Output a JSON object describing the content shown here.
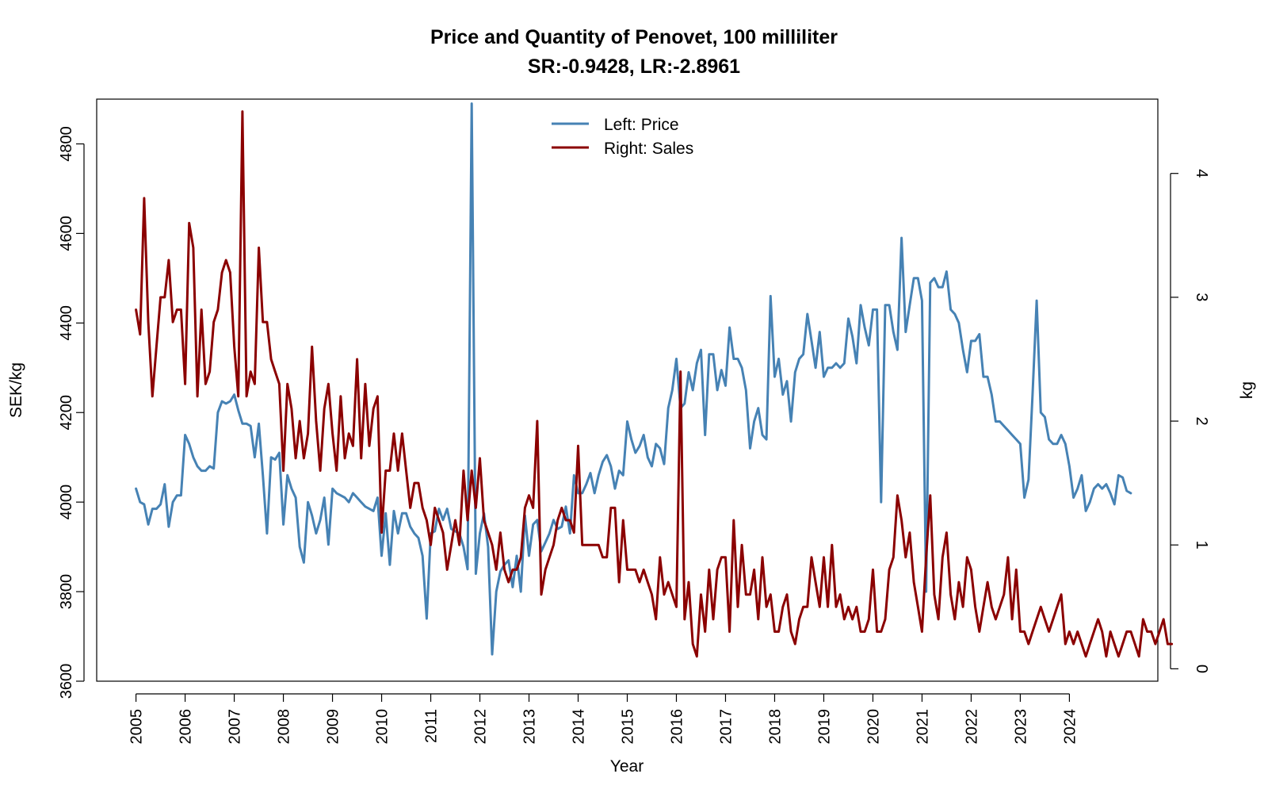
{
  "chart_data": {
    "type": "line",
    "title": "Price and Quantity of Penovet, 100 milliliter",
    "subtitle": "SR:-0.9428, LR:-2.8961",
    "xlabel": "Year",
    "ylabel_left": "SEK/kg",
    "ylabel_right": "kg",
    "x_ticks": [
      "2005",
      "2006",
      "2007",
      "2008",
      "2009",
      "2010",
      "2011",
      "2012",
      "2013",
      "2014",
      "2015",
      "2016",
      "2017",
      "2018",
      "2019",
      "2020",
      "2021",
      "2022",
      "2023",
      "2024"
    ],
    "y_left_ticks": [
      3600,
      3800,
      4000,
      4200,
      4400,
      4600,
      4800
    ],
    "y_right_ticks": [
      0,
      1,
      2,
      3,
      4
    ],
    "ylim_left": [
      3600,
      4900
    ],
    "ylim_right": [
      -0.1,
      4.6
    ],
    "xlim": [
      2004.2,
      2025.8
    ],
    "grid": false,
    "legend_position": "top-center",
    "legend": [
      {
        "label": "Left: Price",
        "color": "#4682B4"
      },
      {
        "label": "Right: Sales",
        "color": "#8B0000"
      }
    ],
    "series": [
      {
        "name": "Left: Price",
        "axis": "left",
        "color": "#4682B4",
        "x_start": 2005.0,
        "x_step": 0.0833333,
        "values": [
          4030,
          4000,
          3995,
          3950,
          3985,
          3985,
          3995,
          4040,
          3945,
          4000,
          4015,
          4015,
          4150,
          4130,
          4100,
          4080,
          4070,
          4070,
          4080,
          4075,
          4200,
          4225,
          4220,
          4225,
          4240,
          4205,
          4175,
          4175,
          4170,
          4100,
          4175,
          4060,
          3930,
          4100,
          4095,
          4110,
          3950,
          4060,
          4030,
          4010,
          3900,
          3865,
          4000,
          3970,
          3930,
          3960,
          4010,
          3905,
          4030,
          4020,
          4015,
          4010,
          4000,
          4020,
          4010,
          4000,
          3990,
          3985,
          3980,
          4010,
          3880,
          3975,
          3860,
          3980,
          3930,
          3975,
          3975,
          3945,
          3930,
          3920,
          3880,
          3740,
          3930,
          3935,
          3985,
          3960,
          3985,
          3940,
          3935,
          3930,
          3900,
          3850,
          4890,
          3840,
          3930,
          3975,
          3900,
          3660,
          3800,
          3845,
          3860,
          3870,
          3810,
          3880,
          3800,
          3970,
          3880,
          3950,
          3960,
          3890,
          3910,
          3930,
          3960,
          3940,
          3945,
          3990,
          3930,
          4060,
          4020,
          4020,
          4040,
          4065,
          4020,
          4060,
          4090,
          4105,
          4080,
          4030,
          4070,
          4060,
          4180,
          4140,
          4110,
          4125,
          4150,
          4100,
          4080,
          4130,
          4120,
          4085,
          4210,
          4250,
          4320,
          4210,
          4220,
          4290,
          4250,
          4310,
          4340,
          4150,
          4330,
          4330,
          4250,
          4295,
          4260,
          4390,
          4320,
          4320,
          4300,
          4250,
          4120,
          4180,
          4210,
          4150,
          4140,
          4460,
          4280,
          4320,
          4240,
          4270,
          4180,
          4290,
          4320,
          4330,
          4420,
          4360,
          4300,
          4380,
          4280,
          4300,
          4300,
          4310,
          4300,
          4310,
          4410,
          4370,
          4310,
          4440,
          4390,
          4350,
          4430,
          4430,
          4000,
          4440,
          4440,
          4380,
          4340,
          4590,
          4380,
          4440,
          4500,
          4500,
          4450,
          3800,
          4490,
          4500,
          4480,
          4480,
          4515,
          4430,
          4420,
          4400,
          4340,
          4290,
          4360,
          4360,
          4375,
          4280,
          4280,
          4240,
          4180,
          4180,
          4170,
          4160,
          4150,
          4140,
          4130,
          4010,
          4050,
          4240,
          4450,
          4200,
          4190,
          4140,
          4130,
          4130,
          4150,
          4130,
          4080,
          4010,
          4030,
          4060,
          3980,
          4000,
          4030,
          4040,
          4030,
          4040,
          4020,
          3995,
          4060,
          4055,
          4025,
          4020
        ]
      },
      {
        "name": "Right: Sales",
        "axis": "right",
        "color": "#8B0000",
        "x_start": 2005.0,
        "x_step": 0.0833333,
        "values": [
          2.9,
          2.7,
          3.8,
          2.8,
          2.2,
          2.6,
          3.0,
          3.0,
          3.3,
          2.8,
          2.9,
          2.9,
          2.3,
          3.6,
          3.4,
          2.2,
          2.9,
          2.3,
          2.4,
          2.8,
          2.9,
          3.2,
          3.3,
          3.2,
          2.6,
          2.2,
          4.5,
          2.2,
          2.4,
          2.3,
          3.4,
          2.8,
          2.8,
          2.5,
          2.4,
          2.3,
          1.6,
          2.3,
          2.1,
          1.7,
          2.0,
          1.7,
          1.9,
          2.6,
          2.0,
          1.6,
          2.1,
          2.3,
          1.9,
          1.6,
          2.2,
          1.7,
          1.9,
          1.8,
          2.5,
          1.7,
          2.3,
          1.8,
          2.1,
          2.2,
          1.1,
          1.6,
          1.6,
          1.9,
          1.6,
          1.9,
          1.6,
          1.3,
          1.5,
          1.5,
          1.3,
          1.2,
          1.0,
          1.3,
          1.2,
          1.1,
          0.8,
          1.0,
          1.2,
          1.0,
          1.6,
          1.2,
          1.6,
          1.3,
          1.7,
          1.2,
          1.1,
          1.0,
          0.8,
          1.1,
          0.8,
          0.7,
          0.8,
          0.8,
          0.9,
          1.3,
          1.4,
          1.3,
          2.0,
          0.6,
          0.8,
          0.9,
          1.0,
          1.2,
          1.3,
          1.2,
          1.2,
          1.1,
          1.8,
          1.0,
          1.0,
          1.0,
          1.0,
          1.0,
          0.9,
          0.9,
          1.3,
          1.3,
          0.7,
          1.2,
          0.8,
          0.8,
          0.8,
          0.7,
          0.8,
          0.7,
          0.6,
          0.4,
          0.9,
          0.6,
          0.7,
          0.6,
          0.5,
          2.4,
          0.4,
          0.7,
          0.2,
          0.1,
          0.6,
          0.3,
          0.8,
          0.4,
          0.8,
          0.9,
          0.9,
          0.3,
          1.2,
          0.5,
          1.0,
          0.6,
          0.6,
          0.8,
          0.4,
          0.9,
          0.5,
          0.6,
          0.3,
          0.3,
          0.5,
          0.6,
          0.3,
          0.2,
          0.4,
          0.5,
          0.5,
          0.9,
          0.7,
          0.5,
          0.9,
          0.5,
          1.0,
          0.5,
          0.6,
          0.4,
          0.5,
          0.4,
          0.5,
          0.3,
          0.3,
          0.4,
          0.8,
          0.3,
          0.3,
          0.4,
          0.8,
          0.9,
          1.4,
          1.2,
          0.9,
          1.1,
          0.7,
          0.5,
          0.3,
          0.9,
          1.4,
          0.6,
          0.4,
          0.9,
          1.1,
          0.6,
          0.4,
          0.7,
          0.5,
          0.9,
          0.8,
          0.5,
          0.3,
          0.5,
          0.7,
          0.5,
          0.4,
          0.5,
          0.6,
          0.9,
          0.4,
          0.8,
          0.3,
          0.3,
          0.2,
          0.3,
          0.4,
          0.5,
          0.4,
          0.3,
          0.4,
          0.5,
          0.6,
          0.2,
          0.3,
          0.2,
          0.3,
          0.2,
          0.1,
          0.2,
          0.3,
          0.4,
          0.3,
          0.1,
          0.3,
          0.2,
          0.1,
          0.2,
          0.3,
          0.3,
          0.2,
          0.1,
          0.4,
          0.3,
          0.3,
          0.2,
          0.3,
          0.4,
          0.2,
          0.2
        ]
      }
    ]
  }
}
